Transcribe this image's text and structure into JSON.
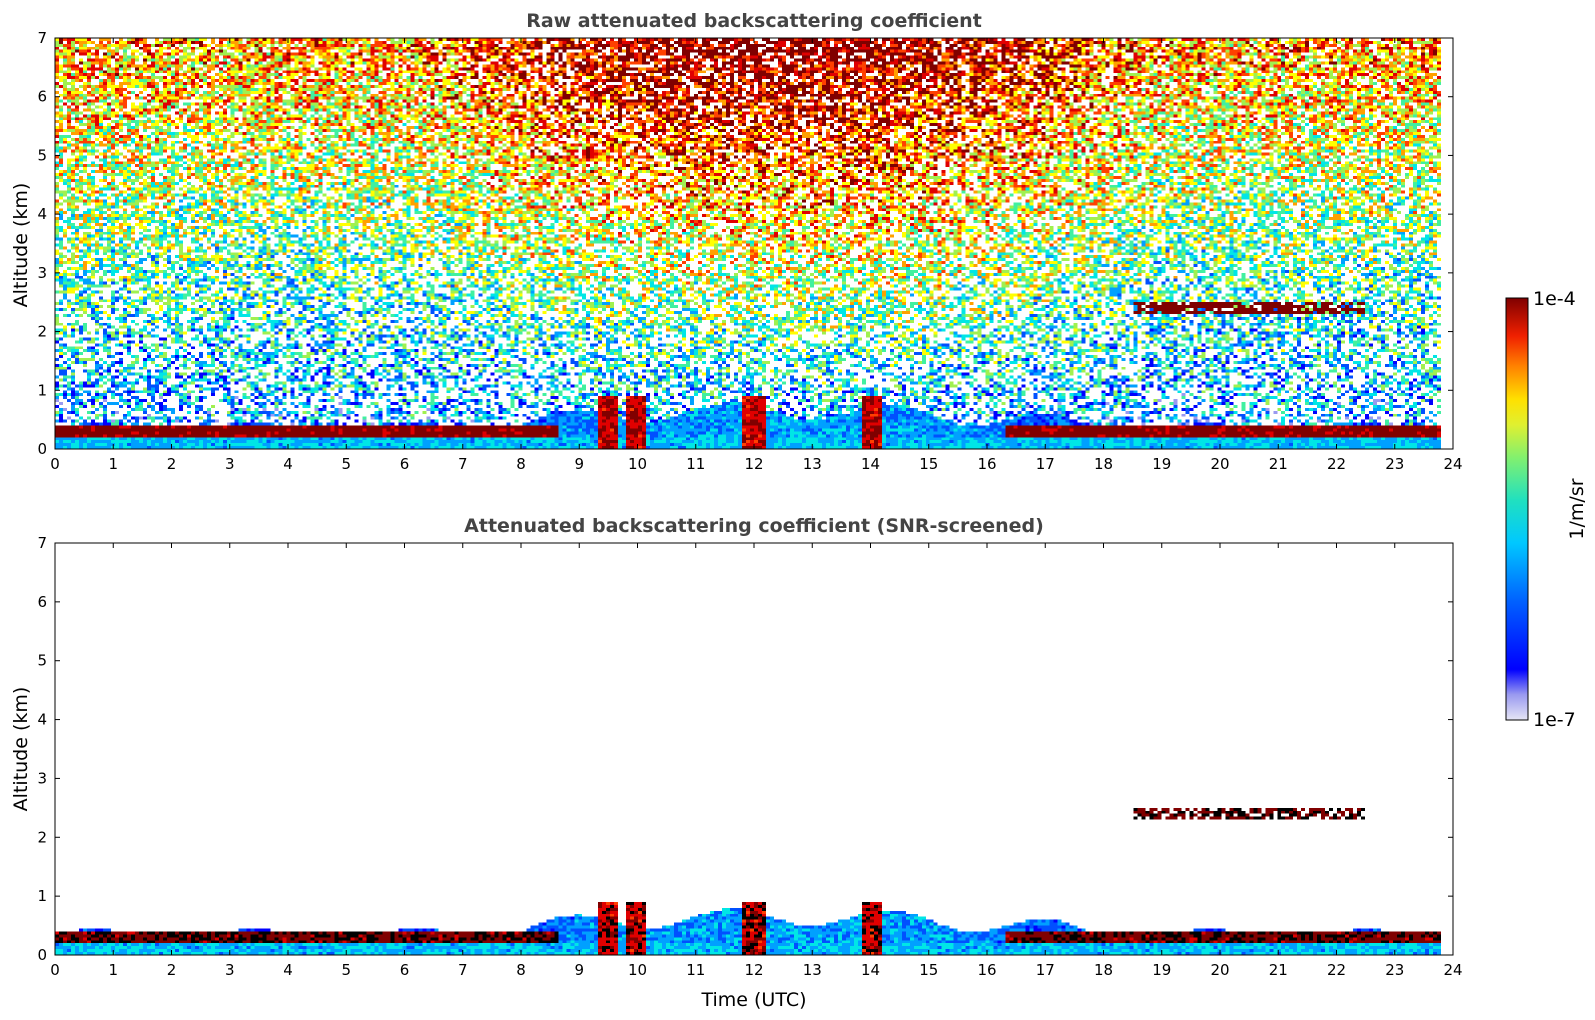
{
  "chart_data": [
    {
      "type": "heatmap",
      "title": "Raw attenuated backscattering coefficient",
      "xlabel": "",
      "ylabel": "Altitude (km)",
      "xlim": [
        0,
        24
      ],
      "ylim": [
        0,
        7
      ],
      "xticks": [
        "0",
        "1",
        "2",
        "3",
        "4",
        "5",
        "6",
        "7",
        "8",
        "9",
        "10",
        "11",
        "12",
        "13",
        "14",
        "15",
        "16",
        "17",
        "18",
        "19",
        "20",
        "21",
        "22",
        "23",
        "24"
      ],
      "yticks": [
        "0",
        "1",
        "2",
        "3",
        "4",
        "5",
        "6",
        "7"
      ],
      "features": {
        "surface_aerosol_layer_km": [
          0.15,
          0.45
        ],
        "elevated_layer": {
          "time_start_utc": 18.5,
          "time_end_utc": 22.5,
          "altitude_km": [
            2.3,
            2.5
          ]
        },
        "midday_plumes_utc": [
          9.5,
          10.0,
          12.0,
          14.0
        ]
      }
    },
    {
      "type": "heatmap",
      "title": "Attenuated backscattering coefficient (SNR-screened)",
      "xlabel": "Time (UTC)",
      "ylabel": "Altitude (km)",
      "xlim": [
        0,
        24
      ],
      "ylim": [
        0,
        7
      ],
      "xticks": [
        "0",
        "1",
        "2",
        "3",
        "4",
        "5",
        "6",
        "7",
        "8",
        "9",
        "10",
        "11",
        "12",
        "13",
        "14",
        "15",
        "16",
        "17",
        "18",
        "19",
        "20",
        "21",
        "22",
        "23",
        "24"
      ],
      "yticks": [
        "0",
        "1",
        "2",
        "3",
        "4",
        "5",
        "6",
        "7"
      ]
    }
  ],
  "colorbar": {
    "max_label": "1e-4",
    "min_label": "1e-7",
    "unit_label": "1/m/sr",
    "scale": "log",
    "colormap": [
      "#e6e6f5",
      "#c8c8f0",
      "#9a9af0",
      "#0000ff",
      "#0050ff",
      "#00a0ff",
      "#00e6e6",
      "#40f0a0",
      "#a0f050",
      "#ffff00",
      "#ffa000",
      "#ff4000",
      "#e00000",
      "#800000"
    ]
  }
}
